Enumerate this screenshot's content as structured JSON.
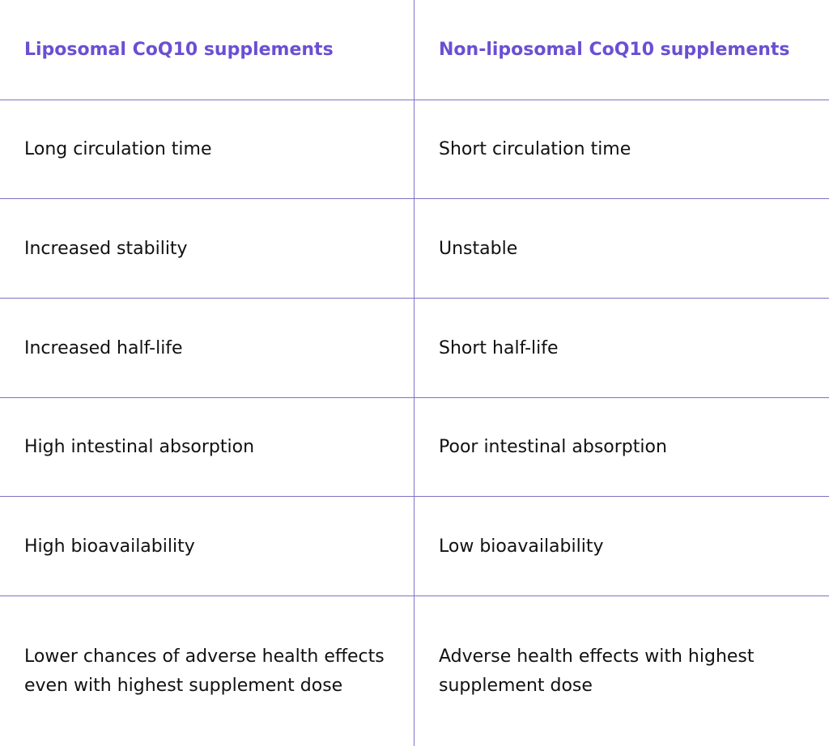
{
  "table": {
    "header": [
      "Liposomal CoQ10 supplements",
      "Non-liposomal CoQ10 supplements"
    ],
    "rows": [
      [
        "Long circulation time",
        "Short circulation time"
      ],
      [
        "Increased stability",
        "Unstable"
      ],
      [
        "Increased half-life",
        "Short half-life"
      ],
      [
        "High intestinal absorption",
        "Poor intestinal absorption"
      ],
      [
        "High bioavailability",
        "Low bioavailability"
      ],
      [
        "Lower chances of adverse health effects even with highest supplement dose",
        "Adverse health effects with highest supplement dose"
      ]
    ]
  }
}
